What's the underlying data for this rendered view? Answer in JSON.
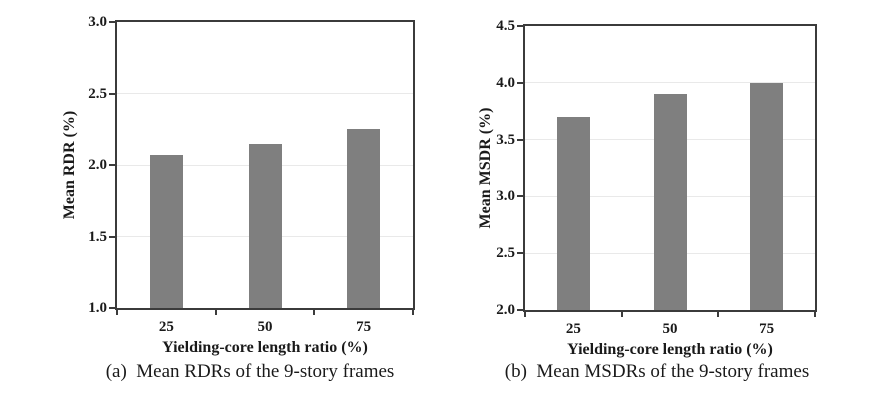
{
  "page": {
    "background": "#ffffff"
  },
  "chart_data": [
    {
      "type": "bar",
      "caption": "(a)  Mean RDRs of the 9-story frames",
      "categories": [
        "25",
        "50",
        "75"
      ],
      "values": [
        2.07,
        2.15,
        2.25
      ],
      "xlabel": "Yielding-core length ratio (%)",
      "ylabel": "Mean RDR (%)",
      "ylim": [
        1.0,
        3.0
      ],
      "yticks": [
        1.0,
        1.5,
        2.0,
        2.5,
        3.0
      ],
      "grid": true,
      "legend_position": "none",
      "bar_color": "#7f7f7f",
      "grid_color": "#e9e9e9",
      "axis_color": "#3b3b3b"
    },
    {
      "type": "bar",
      "caption": "(b)  Mean MSDRs of the 9-story frames",
      "categories": [
        "25",
        "50",
        "75"
      ],
      "values": [
        3.7,
        3.9,
        4.0
      ],
      "xlabel": "Yielding-core length ratio (%)",
      "ylabel": "Mean MSDR (%)",
      "ylim": [
        2.0,
        4.5
      ],
      "yticks": [
        2.0,
        2.5,
        3.0,
        3.5,
        4.0,
        4.5
      ],
      "grid": true,
      "legend_position": "none",
      "bar_color": "#7f7f7f",
      "grid_color": "#e9e9e9",
      "axis_color": "#3b3b3b"
    }
  ]
}
